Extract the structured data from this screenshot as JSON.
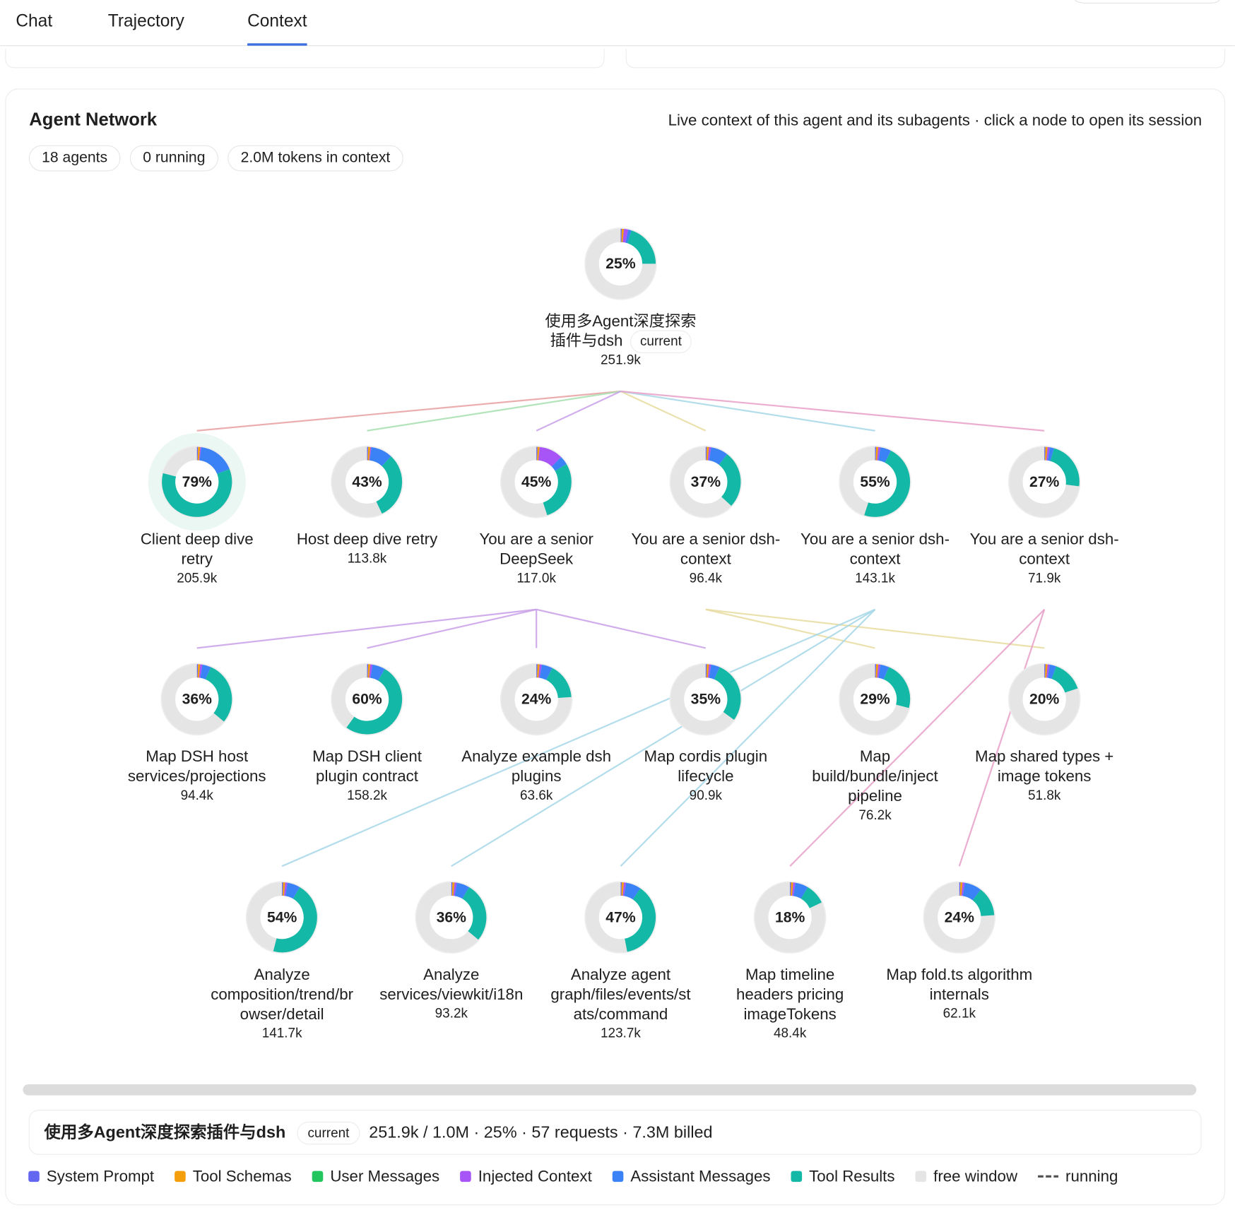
{
  "tabs": [
    "Chat",
    "Trajectory",
    "Context"
  ],
  "panel": {
    "title": "Agent Network",
    "subtitle": "Live context of this agent and its subagents · click a node to open its session",
    "chips": [
      "18 agents",
      "0 running",
      "2.0M tokens in context"
    ],
    "badge": "current",
    "nodes": [
      {
        "pct": "25%",
        "label": [
          "使用多Agent深度探索",
          "插件与dsh"
        ],
        "tokens": "251.9k",
        "segments": [
          0.5,
          1,
          2,
          1.5,
          20
        ]
      },
      {
        "pct": "79%",
        "label": [
          "Client deep dive",
          "retry"
        ],
        "tokens": "205.9k",
        "segments": [
          0.5,
          1,
          0.5,
          17,
          60
        ]
      },
      {
        "pct": "43%",
        "label": [
          "Host deep dive retry"
        ],
        "tokens": "113.8k",
        "segments": [
          0.5,
          1,
          0.5,
          10,
          31
        ]
      },
      {
        "pct": "45%",
        "label": [
          "You are a senior",
          "DeepSeek"
        ],
        "tokens": "117.0k",
        "segments": [
          0.5,
          1,
          11,
          4,
          28.5
        ]
      },
      {
        "pct": "37%",
        "label": [
          "You are a senior dsh-",
          "context"
        ],
        "tokens": "96.4k",
        "segments": [
          0.5,
          1,
          1,
          8,
          26.5
        ]
      },
      {
        "pct": "55%",
        "label": [
          "You are a senior dsh-",
          "context"
        ],
        "tokens": "143.1k",
        "segments": [
          0.5,
          1,
          1,
          5,
          47.5
        ]
      },
      {
        "pct": "27%",
        "label": [
          "You are a senior dsh-",
          "context"
        ],
        "tokens": "71.9k",
        "segments": [
          0.5,
          1,
          1,
          2,
          22.5
        ]
      },
      {
        "pct": "36%",
        "label": [
          "Map DSH host",
          "services/projections"
        ],
        "tokens": "94.4k",
        "segments": [
          0.5,
          1,
          1,
          4,
          29.5
        ]
      },
      {
        "pct": "60%",
        "label": [
          "Map DSH client",
          "plugin contract"
        ],
        "tokens": "158.2k",
        "segments": [
          0.5,
          1,
          1,
          6,
          51.5
        ]
      },
      {
        "pct": "24%",
        "label": [
          "Analyze example dsh",
          "plugins"
        ],
        "tokens": "63.6k",
        "segments": [
          0.5,
          1,
          1,
          5,
          16.5
        ]
      },
      {
        "pct": "35%",
        "label": [
          "Map cordis plugin",
          "lifecycle"
        ],
        "tokens": "90.9k",
        "segments": [
          0.5,
          1,
          1,
          4,
          28.5
        ]
      },
      {
        "pct": "29%",
        "label": [
          "Map",
          "build/bundle/inject",
          "pipeline"
        ],
        "tokens": "76.2k",
        "segments": [
          0.5,
          1,
          1,
          4,
          22.5
        ]
      },
      {
        "pct": "20%",
        "label": [
          "Map shared types +",
          "image tokens"
        ],
        "tokens": "51.8k",
        "segments": [
          0.5,
          1,
          1,
          3,
          14.5
        ]
      },
      {
        "pct": "54%",
        "label": [
          "Analyze",
          "composition/trend/br",
          "owser/detail"
        ],
        "tokens": "141.7k",
        "segments": [
          0.5,
          1,
          1,
          6,
          45.5
        ]
      },
      {
        "pct": "36%",
        "label": [
          "Analyze",
          "services/viewkit/i18n"
        ],
        "tokens": "93.2k",
        "segments": [
          0.5,
          1,
          1,
          6,
          27.5
        ]
      },
      {
        "pct": "47%",
        "label": [
          "Analyze agent",
          "graph/files/events/st",
          "ats/command"
        ],
        "tokens": "123.7k",
        "segments": [
          0.5,
          1,
          1,
          7,
          37.5
        ]
      },
      {
        "pct": "18%",
        "label": [
          "Map timeline",
          "headers pricing",
          "imageTokens"
        ],
        "tokens": "48.4k",
        "segments": [
          0.5,
          1,
          1,
          6,
          9.5
        ]
      },
      {
        "pct": "24%",
        "label": [
          "Map fold.ts algorithm",
          "internals"
        ],
        "tokens": "62.1k",
        "segments": [
          0.5,
          1,
          1,
          8,
          13.5
        ]
      }
    ],
    "footer": {
      "name": "使用多Agent深度探索插件与dsh",
      "stats": "251.9k / 1.0M · 25% · 57 requests · 7.3M billed"
    },
    "legend": [
      {
        "name": "System Prompt",
        "color": "#6366f1"
      },
      {
        "name": "Tool Schemas",
        "color": "#f59e0b"
      },
      {
        "name": "User Messages",
        "color": "#22c55e"
      },
      {
        "name": "Injected Context",
        "color": "#a855f7"
      },
      {
        "name": "Assistant Messages",
        "color": "#3b82f6"
      },
      {
        "name": "Tool Results",
        "color": "#14b8a6"
      },
      {
        "name": "free window",
        "color": "#e5e5e5"
      },
      {
        "name": "running",
        "color": "#555555"
      }
    ]
  }
}
